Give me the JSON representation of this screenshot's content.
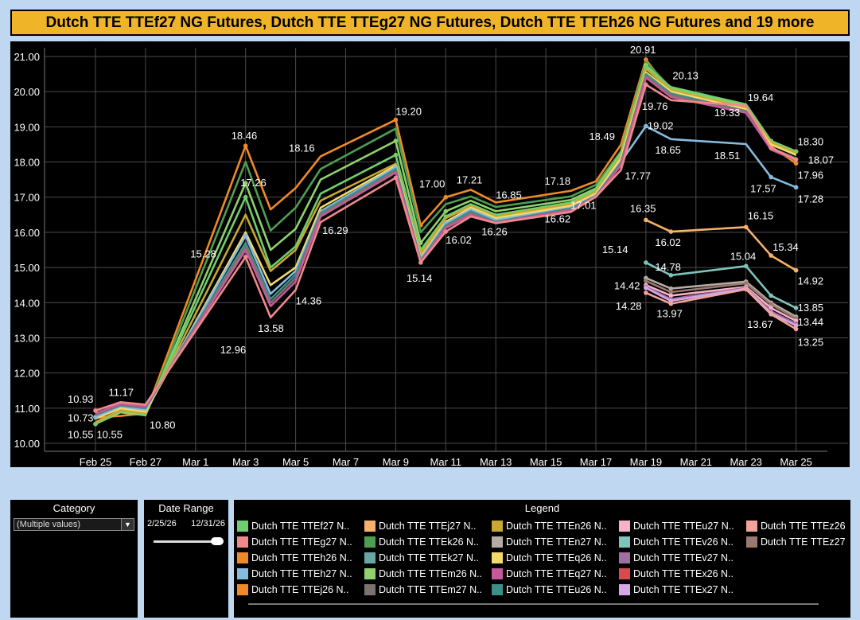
{
  "title": "Dutch TTE TTEf27 NG Futures, Dutch TTE TTEg27 NG Futures, Dutch TTE TTEh26 NG Futures and 19 more",
  "chart_data": {
    "type": "line",
    "ylim": [
      10,
      21.3
    ],
    "y_ticks": [
      "21.00",
      "20.00",
      "19.00",
      "18.00",
      "17.00",
      "16.00",
      "15.00",
      "14.00",
      "13.00",
      "12.00",
      "11.00",
      "10.00"
    ],
    "x_ticks": [
      {
        "label": "Feb 25",
        "day": 0
      },
      {
        "label": "Feb 27",
        "day": 2
      },
      {
        "label": "Mar 1",
        "day": 4
      },
      {
        "label": "Mar 3",
        "day": 6
      },
      {
        "label": "Mar 5",
        "day": 8
      },
      {
        "label": "Mar 7",
        "day": 10
      },
      {
        "label": "Mar 9",
        "day": 12
      },
      {
        "label": "Mar 11",
        "day": 14
      },
      {
        "label": "Mar 13",
        "day": 16
      },
      {
        "label": "Mar 15",
        "day": 18
      },
      {
        "label": "Mar 17",
        "day": 20
      },
      {
        "label": "Mar 19",
        "day": 22
      },
      {
        "label": "Mar 21",
        "day": 24
      },
      {
        "label": "Mar 23",
        "day": 26
      },
      {
        "label": "Mar 25",
        "day": 28
      }
    ],
    "x_days": [
      0,
      1,
      2,
      6,
      7,
      8,
      9,
      12,
      13,
      14,
      15,
      16,
      19,
      20,
      21,
      22,
      23,
      26,
      27,
      28
    ],
    "series": [
      {
        "name": "Dutch TTE TTEh26 NG Futures",
        "color": "#ef8a28",
        "values": [
          10.73,
          10.78,
          10.85,
          18.46,
          16.65,
          17.26,
          18.16,
          19.2,
          16.2,
          17.0,
          17.21,
          16.85,
          17.18,
          17.45,
          18.49,
          20.91,
          20.0,
          19.4,
          18.45,
          17.96
        ],
        "marker": true
      },
      {
        "name": "Dutch TTE TTEk26 NG Futures",
        "color": "#4e9e52",
        "values": [
          10.55,
          10.9,
          10.8,
          18.0,
          16.05,
          16.7,
          17.8,
          18.95,
          16.0,
          16.8,
          17.02,
          16.72,
          17.02,
          17.35,
          18.3,
          20.85,
          20.1,
          19.55,
          18.55,
          18.2
        ]
      },
      {
        "name": "Dutch TTE TTEm26 NG Futures",
        "color": "#8fd16e",
        "values": [
          10.55,
          10.88,
          10.8,
          17.4,
          15.5,
          16.1,
          17.5,
          18.6,
          15.7,
          16.6,
          16.9,
          16.6,
          16.92,
          17.25,
          18.25,
          20.75,
          20.1,
          19.6,
          18.6,
          18.3
        ],
        "marker": true
      },
      {
        "name": "Dutch TTE TTEf27 NG Futures",
        "color": "#6fcf6f",
        "values": [
          10.55,
          10.95,
          10.82,
          17.0,
          15.0,
          15.6,
          17.1,
          18.2,
          15.5,
          16.45,
          16.8,
          16.5,
          16.85,
          17.2,
          18.2,
          20.7,
          20.13,
          19.64,
          18.6,
          18.3
        ],
        "marker": true
      },
      {
        "name": "Dutch TTE TTEn26 NG Futures",
        "color": "#c9a832",
        "values": [
          10.6,
          10.95,
          10.85,
          16.5,
          14.9,
          15.5,
          16.9,
          17.95,
          15.4,
          16.4,
          16.75,
          16.45,
          16.8,
          17.15,
          18.15,
          20.65,
          20.05,
          19.55,
          18.55,
          18.25
        ]
      },
      {
        "name": "Dutch TTE TTEq26 NG Futures",
        "color": "#f3da6b",
        "values": [
          10.7,
          11.0,
          10.9,
          16.0,
          14.5,
          15.0,
          16.7,
          17.9,
          15.3,
          16.3,
          16.7,
          16.4,
          16.75,
          17.1,
          18.1,
          20.55,
          20.0,
          19.5,
          18.5,
          18.2
        ]
      },
      {
        "name": "Dutch TTE TTEh27 NG Futures",
        "color": "#86bbe0",
        "values": [
          10.75,
          11.05,
          10.95,
          15.9,
          14.25,
          14.9,
          16.6,
          17.85,
          15.25,
          16.25,
          16.65,
          16.35,
          16.7,
          17.05,
          18.0,
          19.02,
          18.65,
          18.51,
          17.57,
          17.28
        ],
        "marker": true
      },
      {
        "name": "Dutch TTE TTEu26 NG Futures",
        "color": "#3d8f8a",
        "values": [
          10.8,
          11.08,
          11.0,
          15.7,
          14.1,
          14.8,
          16.55,
          17.8,
          15.2,
          16.2,
          16.6,
          16.3,
          16.68,
          17.03,
          17.98,
          20.5,
          19.95,
          19.45,
          18.4,
          18.1
        ]
      },
      {
        "name": "Dutch TTE TTEm27 NG Futures",
        "color": "#7a7370",
        "values": [
          10.82,
          11.1,
          11.02,
          15.6,
          14.0,
          14.7,
          16.5,
          17.75,
          15.18,
          16.15,
          16.55,
          16.28,
          16.65,
          17.02,
          17.95,
          20.45,
          19.9,
          19.45,
          18.4,
          18.1
        ]
      },
      {
        "name": "Dutch TTE TTEq27 NG Futures",
        "color": "#c45a9a",
        "values": [
          10.85,
          11.12,
          11.05,
          15.5,
          13.9,
          14.6,
          16.45,
          17.7,
          15.16,
          16.12,
          16.5,
          16.27,
          16.63,
          17.01,
          17.9,
          20.4,
          19.85,
          19.4,
          18.35,
          18.05
        ]
      },
      {
        "name": "Dutch TTE TTEg27 NG Futures",
        "color": "#f08a8a",
        "values": [
          10.93,
          11.17,
          11.1,
          15.3,
          13.58,
          14.36,
          16.29,
          17.55,
          15.14,
          16.02,
          16.45,
          16.26,
          16.58,
          17.01,
          17.77,
          20.2,
          19.76,
          19.6,
          18.4,
          18.07
        ],
        "marker": true
      }
    ],
    "late_series": [
      {
        "name": "Dutch TTE TTEj27 NG Futures",
        "color": "#f6b26b",
        "values": [
          16.35,
          16.02,
          16.15,
          15.34,
          14.92
        ]
      },
      {
        "name": "Dutch TTE TTEv26 NG Futures",
        "color": "#7ec4bd",
        "values": [
          15.14,
          14.78,
          15.04,
          14.2,
          13.85
        ]
      },
      {
        "name": "Dutch TTE TTEn27 NG Futures",
        "color": "#b5aca6",
        "values": [
          14.7,
          14.4,
          14.6,
          14.0,
          13.6
        ]
      },
      {
        "name": "Dutch TTE TTEz27 NG Futures",
        "color": "#9a7a6e",
        "values": [
          14.62,
          14.3,
          14.55,
          13.95,
          13.55
        ]
      },
      {
        "name": "Dutch TTE TTEu27 NG Futures",
        "color": "#f6b3c8",
        "values": [
          14.5,
          14.2,
          14.45,
          13.85,
          13.48
        ]
      },
      {
        "name": "Dutch TTE TTEv27 NG Futures",
        "color": "#9e6fa3",
        "values": [
          14.45,
          14.1,
          14.42,
          13.75,
          13.4
        ]
      },
      {
        "name": "Dutch TTE TTEx27 NG Futures",
        "color": "#d7a6e4",
        "values": [
          14.42,
          14.05,
          14.4,
          13.7,
          13.35
        ]
      },
      {
        "name": "Dutch TTE TTEz26 NG Futures",
        "color": "#f2a49a",
        "values": [
          14.28,
          13.97,
          14.38,
          13.67,
          13.25
        ]
      }
    ],
    "late_days": [
      22,
      23,
      26,
      27,
      28
    ],
    "data_labels": [
      {
        "text": "10.93",
        "day": 0,
        "value": 10.93,
        "dx": -35,
        "dy": -10
      },
      {
        "text": "10.73",
        "day": 0,
        "value": 10.73,
        "dx": -35,
        "dy": 5
      },
      {
        "text": "10.55",
        "day": 0,
        "value": 10.55,
        "dx": -35,
        "dy": 18
      },
      {
        "text": "10.55",
        "day": 1,
        "value": 10.55,
        "dx": -30,
        "dy": 18
      },
      {
        "text": "11.17",
        "day": 1,
        "value": 11.17,
        "dx": -15,
        "dy": -8
      },
      {
        "text": "10.80",
        "day": 2,
        "value": 10.8,
        "dx": 5,
        "dy": 17
      },
      {
        "text": "15.28",
        "day": 5,
        "value": 15.28,
        "dx": -38,
        "dy": 0
      },
      {
        "text": "12.96",
        "day": 6,
        "value": 12.96,
        "dx": -32,
        "dy": 18
      },
      {
        "text": "18.46",
        "day": 6,
        "value": 18.46,
        "dx": -18,
        "dy": -8
      },
      {
        "text": "13.58",
        "day": 7,
        "value": 13.58,
        "dx": -16,
        "dy": 18
      },
      {
        "text": "17.26",
        "day": 7,
        "value": 17.26,
        "dx": -38,
        "dy": -2
      },
      {
        "text": "14.36",
        "day": 8,
        "value": 14.36,
        "dx": 0,
        "dy": 18
      },
      {
        "text": "18.16",
        "day": 9,
        "value": 18.16,
        "dx": -40,
        "dy": -6
      },
      {
        "text": "16.29",
        "day": 9,
        "value": 16.29,
        "dx": 2,
        "dy": 15
      },
      {
        "text": "19.20",
        "day": 12,
        "value": 19.2,
        "dx": 0,
        "dy": -6
      },
      {
        "text": "17.00",
        "day": 13,
        "value": 17.0,
        "dx": -2,
        "dy": -12
      },
      {
        "text": "15.14",
        "day": 13,
        "value": 15.14,
        "dx": -18,
        "dy": 24
      },
      {
        "text": "16.02",
        "day": 14,
        "value": 16.02,
        "dx": 0,
        "dy": 15
      },
      {
        "text": "17.21",
        "day": 15,
        "value": 17.21,
        "dx": -18,
        "dy": -8
      },
      {
        "text": "16.85",
        "day": 16,
        "value": 16.85,
        "dx": 0,
        "dy": -5
      },
      {
        "text": "16.26",
        "day": 16,
        "value": 16.26,
        "dx": -18,
        "dy": 15
      },
      {
        "text": "17.18",
        "day": 19,
        "value": 17.18,
        "dx": -33,
        "dy": -8
      },
      {
        "text": "16.62",
        "day": 19,
        "value": 16.62,
        "dx": -33,
        "dy": 15
      },
      {
        "text": "17.01",
        "day": 20,
        "value": 17.01,
        "dx": -32,
        "dy": 15
      },
      {
        "text": "18.49",
        "day": 21,
        "value": 18.49,
        "dx": -40,
        "dy": -6
      },
      {
        "text": "17.77",
        "day": 21,
        "value": 17.77,
        "dx": 5,
        "dy": 12
      },
      {
        "text": "20.91",
        "day": 22,
        "value": 20.91,
        "dx": -20,
        "dy": -8
      },
      {
        "text": "19.76",
        "day": 22,
        "value": 19.76,
        "dx": -5,
        "dy": 12
      },
      {
        "text": "19.02",
        "day": 22,
        "value": 19.02,
        "dx": 2,
        "dy": 4
      },
      {
        "text": "18.65",
        "day": 23,
        "value": 18.65,
        "dx": -20,
        "dy": 18
      },
      {
        "text": "20.13",
        "day": 23,
        "value": 20.13,
        "dx": 2,
        "dy": -10
      },
      {
        "text": "19.33",
        "day": 26,
        "value": 19.33,
        "dx": -40,
        "dy": 1
      },
      {
        "text": "19.64",
        "day": 26,
        "value": 19.64,
        "dx": 2,
        "dy": -4
      },
      {
        "text": "18.51",
        "day": 26,
        "value": 18.51,
        "dx": -40,
        "dy": 19
      },
      {
        "text": "17.57",
        "day": 27,
        "value": 17.57,
        "dx": -26,
        "dy": 19
      },
      {
        "text": "18.30",
        "day": 28,
        "value": 18.3,
        "dx": 2,
        "dy": -8
      },
      {
        "text": "18.07",
        "day": 28,
        "value": 18.07,
        "dx": 15,
        "dy": 5
      },
      {
        "text": "17.96",
        "day": 28,
        "value": 17.96,
        "dx": 2,
        "dy": 19
      },
      {
        "text": "17.28",
        "day": 28,
        "value": 17.28,
        "dx": 2,
        "dy": 19
      },
      {
        "text": "16.35",
        "day": 22,
        "value": 16.35,
        "dx": -20,
        "dy": -10
      },
      {
        "text": "16.02",
        "day": 23,
        "value": 16.02,
        "dx": -20,
        "dy": 18
      },
      {
        "text": "16.15",
        "day": 26,
        "value": 16.15,
        "dx": 2,
        "dy": -10
      },
      {
        "text": "15.34",
        "day": 27,
        "value": 15.34,
        "dx": 2,
        "dy": -6
      },
      {
        "text": "14.92",
        "day": 28,
        "value": 14.92,
        "dx": 2,
        "dy": 18
      },
      {
        "text": "15.14",
        "day": 22,
        "value": 15.14,
        "dx": -55,
        "dy": -12
      },
      {
        "text": "14.78",
        "day": 23,
        "value": 14.78,
        "dx": -20,
        "dy": -6
      },
      {
        "text": "15.04",
        "day": 26,
        "value": 15.04,
        "dx": -20,
        "dy": -8
      },
      {
        "text": "14.42",
        "day": 22,
        "value": 14.42,
        "dx": -40,
        "dy": 2
      },
      {
        "text": "14.28",
        "day": 22,
        "value": 14.28,
        "dx": -38,
        "dy": 21
      },
      {
        "text": "13.97",
        "day": 23,
        "value": 13.97,
        "dx": -18,
        "dy": 17
      },
      {
        "text": "13.67",
        "day": 27,
        "value": 13.67,
        "dx": -30,
        "dy": 17
      },
      {
        "text": "13.85",
        "day": 28,
        "value": 13.85,
        "dx": 2,
        "dy": 4
      },
      {
        "text": "13.44",
        "day": 28,
        "value": 13.44,
        "dx": 2,
        "dy": 4
      },
      {
        "text": "13.25",
        "day": 28,
        "value": 13.25,
        "dx": 2,
        "dy": 21
      }
    ]
  },
  "category": {
    "title": "Category",
    "value": "(Multiple values)"
  },
  "date_range": {
    "title": "Date Range",
    "start": "2/25/26",
    "end": "12/31/26"
  },
  "legend": {
    "title": "Legend",
    "items": [
      {
        "label": "Dutch TTE TTEf27 N..",
        "color": "#6fcf6f"
      },
      {
        "label": "Dutch TTE TTEj27 N..",
        "color": "#f6b26b"
      },
      {
        "label": "Dutch TTE TTEn26 N..",
        "color": "#c9a832"
      },
      {
        "label": "Dutch TTE TTEu27 N..",
        "color": "#f6b3c8"
      },
      {
        "label": "Dutch TTE TTEz26",
        "color": "#f2a49a"
      },
      {
        "label": "Dutch TTE TTEg27 N..",
        "color": "#f08a8a"
      },
      {
        "label": "Dutch TTE TTEk26 N..",
        "color": "#4e9e52"
      },
      {
        "label": "Dutch TTE TTEn27 N..",
        "color": "#b5aca6"
      },
      {
        "label": "Dutch TTE TTEv26 N..",
        "color": "#7ec4bd"
      },
      {
        "label": "Dutch TTE TTEz27",
        "color": "#9a7a6e"
      },
      {
        "label": "Dutch TTE TTEh26 N..",
        "color": "#ef8a28"
      },
      {
        "label": "Dutch TTE TTEk27 N..",
        "color": "#6aa7a3"
      },
      {
        "label": "Dutch TTE TTEq26 N..",
        "color": "#f3da6b"
      },
      {
        "label": "Dutch TTE TTEv27 N..",
        "color": "#9e6fa3"
      },
      {
        "label": "",
        "color": ""
      },
      {
        "label": "Dutch TTE TTEh27 N..",
        "color": "#86bbe0"
      },
      {
        "label": "Dutch TTE TTEm26 N..",
        "color": "#8fd16e"
      },
      {
        "label": "Dutch TTE TTEq27 N..",
        "color": "#c45a9a"
      },
      {
        "label": "Dutch TTE TTEx26 N..",
        "color": "#d94a4a"
      },
      {
        "label": "",
        "color": ""
      },
      {
        "label": "Dutch TTE TTEj26 N..",
        "color": "#ef8a28"
      },
      {
        "label": "Dutch TTE TTEm27 N..",
        "color": "#7a7370"
      },
      {
        "label": "Dutch TTE TTEu26 N..",
        "color": "#3d8f8a"
      },
      {
        "label": "Dutch TTE TTEx27 N..",
        "color": "#d7a6e4"
      },
      {
        "label": "",
        "color": ""
      }
    ]
  }
}
